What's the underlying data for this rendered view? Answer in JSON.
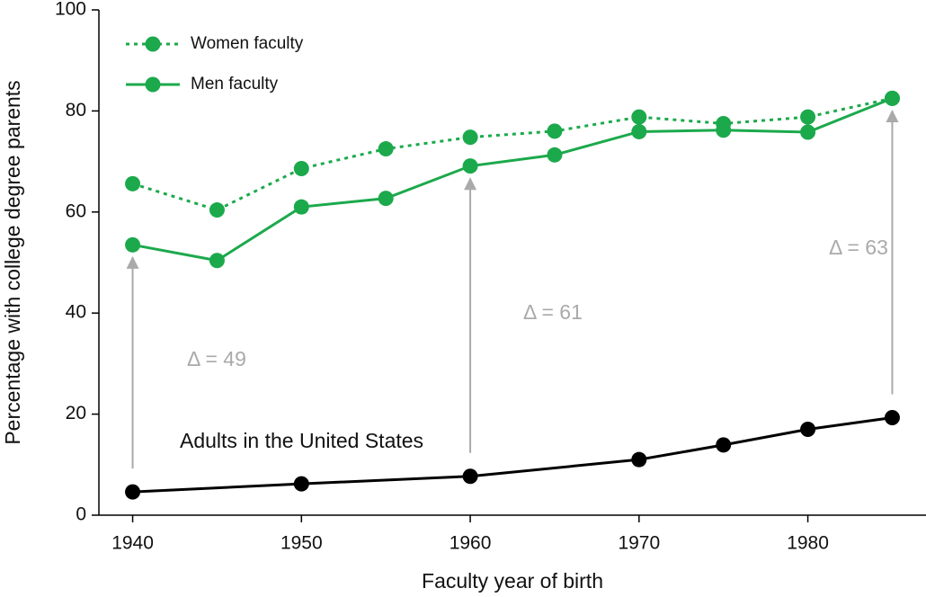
{
  "chart_data": {
    "type": "line",
    "x_label": "Faculty year of birth",
    "y_label": "Percentage with college degree parents",
    "xlim": [
      1938,
      1987
    ],
    "xticks": [
      1940,
      1950,
      1960,
      1970,
      1980
    ],
    "ylim": [
      0,
      100
    ],
    "yticks": [
      0,
      20,
      40,
      60,
      80,
      100
    ],
    "legend": "upper left",
    "series": [
      {
        "name": "Women faculty",
        "color": "#1ca94c",
        "style": "dotted",
        "x": [
          1940,
          1945,
          1950,
          1955,
          1960,
          1965,
          1970,
          1975,
          1980,
          1985
        ],
        "values": [
          65.6,
          60.4,
          68.6,
          72.5,
          74.8,
          76.0,
          78.8,
          77.5,
          78.8,
          82.5
        ]
      },
      {
        "name": "Men faculty",
        "color": "#1ca94c",
        "style": "solid",
        "x": [
          1940,
          1945,
          1950,
          1955,
          1960,
          1965,
          1970,
          1975,
          1980,
          1985
        ],
        "values": [
          53.5,
          50.4,
          61.0,
          62.7,
          69.1,
          71.3,
          75.9,
          76.2,
          75.8,
          82.5
        ]
      },
      {
        "name": "Adults in the United States",
        "color": "#000000",
        "style": "solid",
        "x": [
          1940,
          1950,
          1960,
          1970,
          1975,
          1980,
          1985
        ],
        "values": [
          4.6,
          6.2,
          7.7,
          11.0,
          13.9,
          17.0,
          19.3
        ]
      }
    ],
    "annotations": [
      {
        "text": "Δ = 49",
        "x": 1940
      },
      {
        "text": "Δ = 61",
        "x": 1960
      },
      {
        "text": "Δ = 63",
        "x": 1985
      }
    ]
  }
}
